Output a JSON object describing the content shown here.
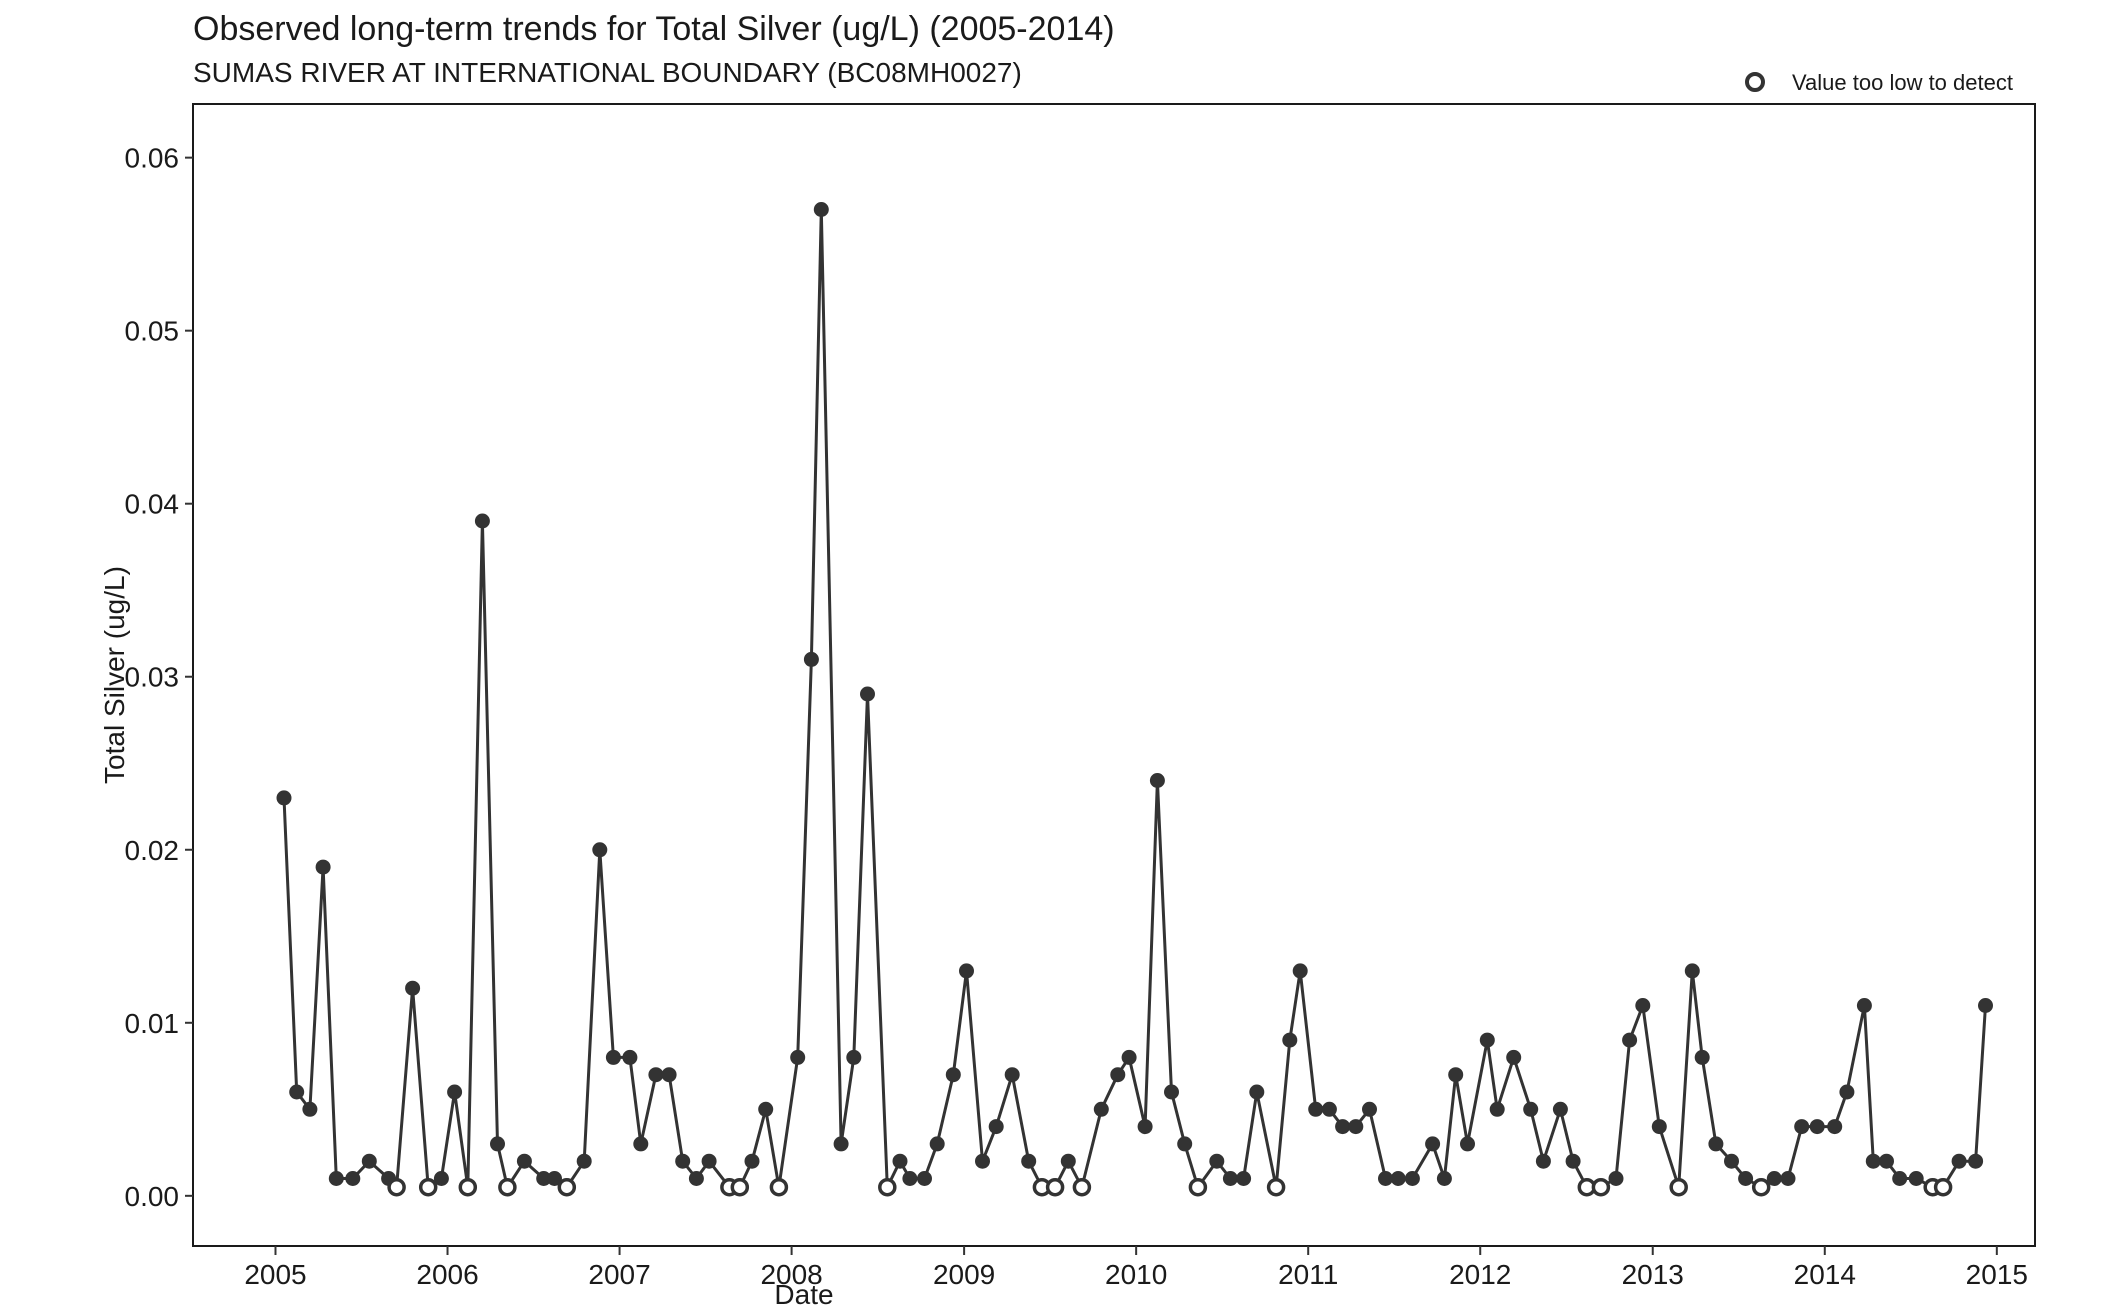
{
  "chart_data": {
    "type": "scatter",
    "title": "Observed long-term trends for Total Silver (ug/L) (2005-2014)",
    "subtitle": "SUMAS RIVER AT INTERNATIONAL BOUNDARY (BC08MH0027)",
    "xlabel": "Date",
    "ylabel": "Total Silver (ug/L)",
    "xlim": [
      "2004-07-10",
      "2015-03-23"
    ],
    "ylim": [
      -0.0029,
      0.0631
    ],
    "xticks": [
      "2005",
      "2006",
      "2007",
      "2008",
      "2009",
      "2010",
      "2011",
      "2012",
      "2013",
      "2014",
      "2015"
    ],
    "yticks": [
      "0.00",
      "0.01",
      "0.02",
      "0.03",
      "0.04",
      "0.05",
      "0.06"
    ],
    "grid": false,
    "legend": {
      "position": "top-right",
      "label": "Value too low to detect",
      "marker": "open-circle"
    },
    "colors": {
      "line": "#333333",
      "marker": "#333333",
      "background": "#ffffff"
    },
    "series": [
      {
        "points": [
          {
            "x": "2005-01-19",
            "y": 0.023,
            "detected": true
          },
          {
            "x": "2005-02-15",
            "y": 0.006,
            "detected": true
          },
          {
            "x": "2005-03-15",
            "y": 0.005,
            "detected": true
          },
          {
            "x": "2005-04-12",
            "y": 0.019,
            "detected": true
          },
          {
            "x": "2005-05-10",
            "y": 0.001,
            "detected": true
          },
          {
            "x": "2005-06-14",
            "y": 0.001,
            "detected": true
          },
          {
            "x": "2005-07-19",
            "y": 0.002,
            "detected": true
          },
          {
            "x": "2005-08-29",
            "y": 0.001,
            "detected": true
          },
          {
            "x": "2005-09-15",
            "y": 0.0005,
            "detected": false
          },
          {
            "x": "2005-10-19",
            "y": 0.012,
            "detected": true
          },
          {
            "x": "2005-11-21",
            "y": 0.0005,
            "detected": false
          },
          {
            "x": "2005-12-19",
            "y": 0.001,
            "detected": true
          },
          {
            "x": "2006-01-16",
            "y": 0.006,
            "detected": true
          },
          {
            "x": "2006-02-13",
            "y": 0.0005,
            "detected": false
          },
          {
            "x": "2006-03-16",
            "y": 0.039,
            "detected": true
          },
          {
            "x": "2006-04-17",
            "y": 0.003,
            "detected": true
          },
          {
            "x": "2006-05-08",
            "y": 0.0005,
            "detected": false
          },
          {
            "x": "2006-06-13",
            "y": 0.002,
            "detected": true
          },
          {
            "x": "2006-07-24",
            "y": 0.001,
            "detected": true
          },
          {
            "x": "2006-08-16",
            "y": 0.001,
            "detected": true
          },
          {
            "x": "2006-09-11",
            "y": 0.0005,
            "detected": false
          },
          {
            "x": "2006-10-18",
            "y": 0.002,
            "detected": true
          },
          {
            "x": "2006-11-20",
            "y": 0.02,
            "detected": true
          },
          {
            "x": "2006-12-19",
            "y": 0.008,
            "detected": true
          },
          {
            "x": "2007-01-23",
            "y": 0.008,
            "detected": true
          },
          {
            "x": "2007-02-15",
            "y": 0.003,
            "detected": true
          },
          {
            "x": "2007-03-19",
            "y": 0.007,
            "detected": true
          },
          {
            "x": "2007-04-16",
            "y": 0.007,
            "detected": true
          },
          {
            "x": "2007-05-15",
            "y": 0.002,
            "detected": true
          },
          {
            "x": "2007-06-13",
            "y": 0.001,
            "detected": true
          },
          {
            "x": "2007-07-10",
            "y": 0.002,
            "detected": true
          },
          {
            "x": "2007-08-22",
            "y": 0.0005,
            "detected": false
          },
          {
            "x": "2007-09-13",
            "y": 0.0005,
            "detected": false
          },
          {
            "x": "2007-10-09",
            "y": 0.002,
            "detected": true
          },
          {
            "x": "2007-11-07",
            "y": 0.005,
            "detected": true
          },
          {
            "x": "2007-12-05",
            "y": 0.0005,
            "detected": false
          },
          {
            "x": "2008-01-14",
            "y": 0.008,
            "detected": true
          },
          {
            "x": "2008-02-12",
            "y": 0.031,
            "detected": true
          },
          {
            "x": "2008-03-04",
            "y": 0.057,
            "detected": true
          },
          {
            "x": "2008-04-15",
            "y": 0.003,
            "detected": true
          },
          {
            "x": "2008-05-12",
            "y": 0.008,
            "detected": true
          },
          {
            "x": "2008-06-10",
            "y": 0.029,
            "detected": true
          },
          {
            "x": "2008-07-22",
            "y": 0.0005,
            "detected": false
          },
          {
            "x": "2008-08-18",
            "y": 0.002,
            "detected": true
          },
          {
            "x": "2008-09-08",
            "y": 0.001,
            "detected": true
          },
          {
            "x": "2008-10-09",
            "y": 0.001,
            "detected": true
          },
          {
            "x": "2008-11-05",
            "y": 0.003,
            "detected": true
          },
          {
            "x": "2008-12-09",
            "y": 0.007,
            "detected": true
          },
          {
            "x": "2009-01-06",
            "y": 0.013,
            "detected": true
          },
          {
            "x": "2009-02-09",
            "y": 0.002,
            "detected": true
          },
          {
            "x": "2009-03-10",
            "y": 0.004,
            "detected": true
          },
          {
            "x": "2009-04-13",
            "y": 0.007,
            "detected": true
          },
          {
            "x": "2009-05-18",
            "y": 0.002,
            "detected": true
          },
          {
            "x": "2009-06-15",
            "y": 0.0005,
            "detected": false
          },
          {
            "x": "2009-07-13",
            "y": 0.0005,
            "detected": false
          },
          {
            "x": "2009-08-10",
            "y": 0.002,
            "detected": true
          },
          {
            "x": "2009-09-08",
            "y": 0.0005,
            "detected": false
          },
          {
            "x": "2009-10-19",
            "y": 0.005,
            "detected": true
          },
          {
            "x": "2009-11-23",
            "y": 0.007,
            "detected": true
          },
          {
            "x": "2009-12-17",
            "y": 0.008,
            "detected": true
          },
          {
            "x": "2010-01-20",
            "y": 0.004,
            "detected": true
          },
          {
            "x": "2010-02-15",
            "y": 0.024,
            "detected": true
          },
          {
            "x": "2010-03-17",
            "y": 0.006,
            "detected": true
          },
          {
            "x": "2010-04-14",
            "y": 0.003,
            "detected": true
          },
          {
            "x": "2010-05-12",
            "y": 0.0005,
            "detected": false
          },
          {
            "x": "2010-06-21",
            "y": 0.002,
            "detected": true
          },
          {
            "x": "2010-07-20",
            "y": 0.001,
            "detected": true
          },
          {
            "x": "2010-08-17",
            "y": 0.001,
            "detected": true
          },
          {
            "x": "2010-09-14",
            "y": 0.006,
            "detected": true
          },
          {
            "x": "2010-10-25",
            "y": 0.0005,
            "detected": false
          },
          {
            "x": "2010-11-23",
            "y": 0.009,
            "detected": true
          },
          {
            "x": "2010-12-15",
            "y": 0.013,
            "detected": true
          },
          {
            "x": "2011-01-17",
            "y": 0.005,
            "detected": true
          },
          {
            "x": "2011-02-15",
            "y": 0.005,
            "detected": true
          },
          {
            "x": "2011-03-15",
            "y": 0.004,
            "detected": true
          },
          {
            "x": "2011-04-12",
            "y": 0.004,
            "detected": true
          },
          {
            "x": "2011-05-11",
            "y": 0.005,
            "detected": true
          },
          {
            "x": "2011-06-14",
            "y": 0.001,
            "detected": true
          },
          {
            "x": "2011-07-11",
            "y": 0.001,
            "detected": true
          },
          {
            "x": "2011-08-10",
            "y": 0.001,
            "detected": true
          },
          {
            "x": "2011-09-22",
            "y": 0.003,
            "detected": true
          },
          {
            "x": "2011-10-17",
            "y": 0.001,
            "detected": true
          },
          {
            "x": "2011-11-10",
            "y": 0.007,
            "detected": true
          },
          {
            "x": "2011-12-05",
            "y": 0.003,
            "detected": true
          },
          {
            "x": "2012-01-16",
            "y": 0.009,
            "detected": true
          },
          {
            "x": "2012-02-06",
            "y": 0.005,
            "detected": true
          },
          {
            "x": "2012-03-12",
            "y": 0.008,
            "detected": true
          },
          {
            "x": "2012-04-17",
            "y": 0.005,
            "detected": true
          },
          {
            "x": "2012-05-14",
            "y": 0.002,
            "detected": true
          },
          {
            "x": "2012-06-19",
            "y": 0.005,
            "detected": true
          },
          {
            "x": "2012-07-16",
            "y": 0.002,
            "detected": true
          },
          {
            "x": "2012-08-14",
            "y": 0.0005,
            "detected": false
          },
          {
            "x": "2012-09-13",
            "y": 0.0005,
            "detected": false
          },
          {
            "x": "2012-10-15",
            "y": 0.001,
            "detected": true
          },
          {
            "x": "2012-11-13",
            "y": 0.009,
            "detected": true
          },
          {
            "x": "2012-12-11",
            "y": 0.011,
            "detected": true
          },
          {
            "x": "2013-01-15",
            "y": 0.004,
            "detected": true
          },
          {
            "x": "2013-02-25",
            "y": 0.0005,
            "detected": false
          },
          {
            "x": "2013-03-26",
            "y": 0.013,
            "detected": true
          },
          {
            "x": "2013-04-16",
            "y": 0.008,
            "detected": true
          },
          {
            "x": "2013-05-15",
            "y": 0.003,
            "detected": true
          },
          {
            "x": "2013-06-17",
            "y": 0.002,
            "detected": true
          },
          {
            "x": "2013-07-17",
            "y": 0.001,
            "detected": true
          },
          {
            "x": "2013-08-19",
            "y": 0.0005,
            "detected": false
          },
          {
            "x": "2013-09-16",
            "y": 0.001,
            "detected": true
          },
          {
            "x": "2013-10-15",
            "y": 0.001,
            "detected": true
          },
          {
            "x": "2013-11-13",
            "y": 0.004,
            "detected": true
          },
          {
            "x": "2013-12-16",
            "y": 0.004,
            "detected": true
          },
          {
            "x": "2014-01-22",
            "y": 0.004,
            "detected": true
          },
          {
            "x": "2014-02-17",
            "y": 0.006,
            "detected": true
          },
          {
            "x": "2014-03-26",
            "y": 0.011,
            "detected": true
          },
          {
            "x": "2014-04-14",
            "y": 0.002,
            "detected": true
          },
          {
            "x": "2014-05-12",
            "y": 0.002,
            "detected": true
          },
          {
            "x": "2014-06-09",
            "y": 0.001,
            "detected": true
          },
          {
            "x": "2014-07-14",
            "y": 0.001,
            "detected": true
          },
          {
            "x": "2014-08-18",
            "y": 0.0005,
            "detected": false
          },
          {
            "x": "2014-09-09",
            "y": 0.0005,
            "detected": false
          },
          {
            "x": "2014-10-13",
            "y": 0.002,
            "detected": true
          },
          {
            "x": "2014-11-17",
            "y": 0.002,
            "detected": true
          },
          {
            "x": "2014-12-08",
            "y": 0.011,
            "detected": true
          }
        ]
      }
    ]
  }
}
